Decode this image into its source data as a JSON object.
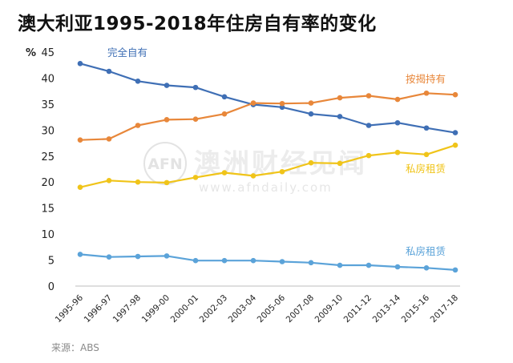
{
  "title": "澳大利亚1995-2018年住房自有率的变化",
  "source": "来源：ABS",
  "watermark": {
    "logo_text": "AFN",
    "name": "澳洲财经见闻",
    "url": "www.afndaily.com"
  },
  "chart_data": {
    "type": "line",
    "title": "澳大利亚1995-2018年住房自有率的变化",
    "ylabel": "%",
    "ylim": [
      0,
      45
    ],
    "yticks": [
      0,
      5,
      10,
      15,
      20,
      25,
      30,
      35,
      40,
      45
    ],
    "grid": false,
    "categories": [
      "1995-96",
      "1996-97",
      "1997-98",
      "1999-00",
      "2000-01",
      "2002-03",
      "2003-04",
      "2005-06",
      "2007-08",
      "2009-10",
      "2011-12",
      "2013-14",
      "2015-16",
      "2017-18"
    ],
    "series": [
      {
        "name": "完全自有",
        "color": "#3f6fb5",
        "values": [
          42.8,
          41.3,
          39.4,
          38.6,
          38.2,
          36.4,
          34.9,
          34.4,
          33.1,
          32.6,
          30.9,
          31.4,
          30.4,
          29.5
        ]
      },
      {
        "name": "按揭持有",
        "color": "#e8873a",
        "values": [
          28.1,
          28.3,
          30.9,
          32.0,
          32.1,
          33.1,
          35.2,
          35.1,
          35.2,
          36.2,
          36.6,
          35.9,
          37.1,
          36.8
        ]
      },
      {
        "name": "私房租赁",
        "color": "#f0c419",
        "values": [
          19.0,
          20.3,
          20.0,
          19.9,
          20.9,
          21.8,
          21.2,
          22.0,
          23.7,
          23.6,
          25.1,
          25.7,
          25.3,
          27.1
        ]
      },
      {
        "name": "私房租赁",
        "color": "#5ba3d9",
        "values": [
          6.1,
          5.6,
          5.7,
          5.8,
          4.9,
          4.9,
          4.9,
          4.7,
          4.5,
          4.0,
          4.0,
          3.7,
          3.5,
          3.1
        ]
      }
    ]
  }
}
